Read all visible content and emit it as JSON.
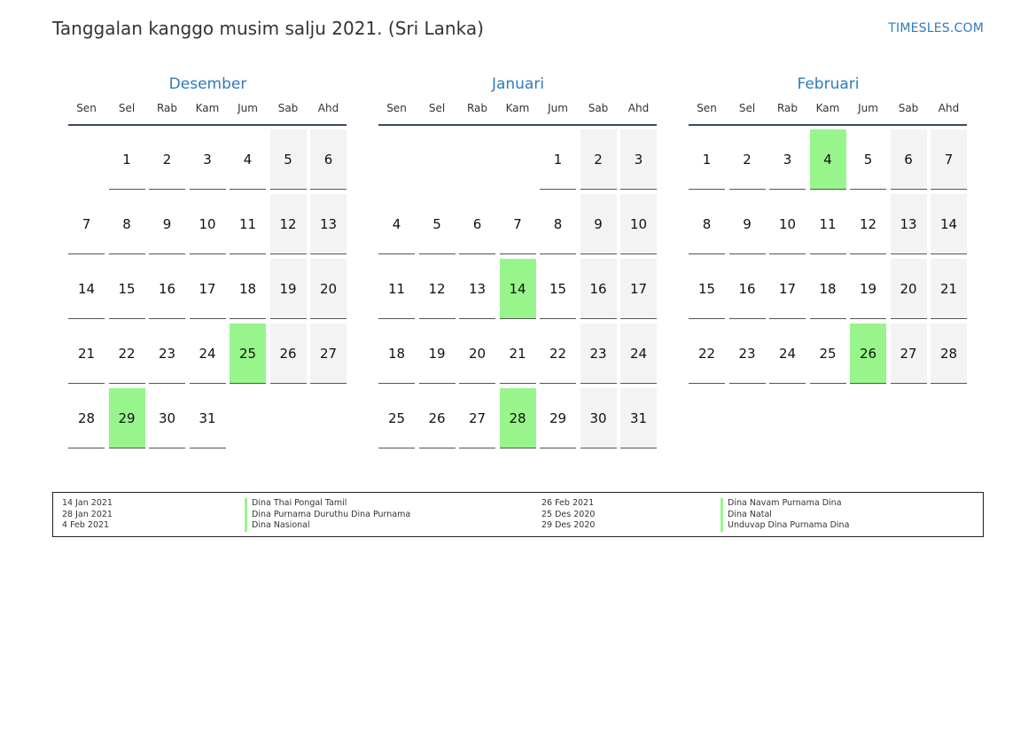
{
  "header": {
    "title": "Tanggalan kanggo musim salju 2021. (Sri Lanka)",
    "site": "TIMESLES.COM"
  },
  "colors": {
    "accent": "#2f7bbd",
    "holiday": "#98f58c",
    "weekend": "#f3f3f3"
  },
  "weekdays": [
    "Sen",
    "Sel",
    "Rab",
    "Kam",
    "Jum",
    "Sab",
    "Ahd"
  ],
  "months": [
    {
      "name": "Desember",
      "offset": 1,
      "days": 31,
      "holidays": [
        25,
        29
      ]
    },
    {
      "name": "Januari",
      "offset": 4,
      "days": 31,
      "holidays": [
        14,
        28
      ]
    },
    {
      "name": "Februari",
      "offset": 0,
      "days": 28,
      "holidays": [
        4,
        26
      ]
    }
  ],
  "legend": [
    {
      "date": "14 Jan 2021",
      "name": "Dina Thai Pongal Tamil"
    },
    {
      "date": "28 Jan 2021",
      "name": "Dina Purnama Duruthu Dina Purnama"
    },
    {
      "date": "4 Feb 2021",
      "name": "Dina Nasional"
    },
    {
      "date": "26 Feb 2021",
      "name": "Dina Navam Purnama Dina"
    },
    {
      "date": "25 Des 2020",
      "name": "Dina Natal"
    },
    {
      "date": "29 Des 2020",
      "name": "Unduvap Dina Purnama Dina"
    }
  ]
}
